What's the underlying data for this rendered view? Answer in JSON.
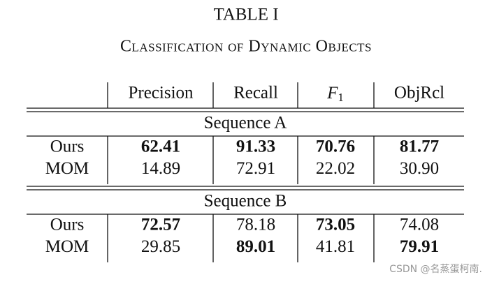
{
  "title": "TABLE I",
  "subtitle": "Classification of Dynamic Objects",
  "table": {
    "columns": [
      "Precision",
      "Recall",
      {
        "text": "F",
        "sub": "1"
      },
      "ObjRcl"
    ],
    "sections": [
      {
        "title": "Sequence A",
        "rows": [
          {
            "label": "Ours",
            "values": [
              "62.41",
              "91.33",
              "70.76",
              "81.77"
            ],
            "bold": [
              true,
              true,
              true,
              true
            ]
          },
          {
            "label": "MOM",
            "values": [
              "14.89",
              "72.91",
              "22.02",
              "30.90"
            ],
            "bold": [
              false,
              false,
              false,
              false
            ]
          }
        ]
      },
      {
        "title": "Sequence B",
        "rows": [
          {
            "label": "Ours",
            "values": [
              "72.57",
              "78.18",
              "73.05",
              "74.08"
            ],
            "bold": [
              true,
              false,
              true,
              false
            ]
          },
          {
            "label": "MOM",
            "values": [
              "29.85",
              "89.01",
              "41.81",
              "79.91"
            ],
            "bold": [
              false,
              true,
              false,
              true
            ]
          }
        ]
      }
    ]
  },
  "watermark": "CSDN @名蒸蛋柯南."
}
